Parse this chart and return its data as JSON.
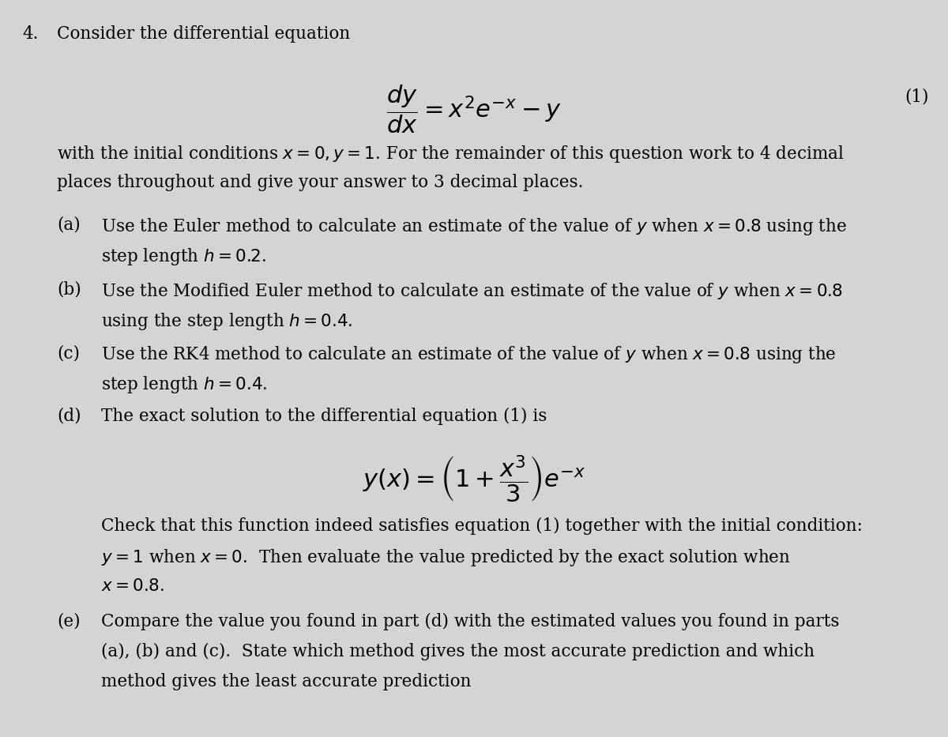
{
  "background_color": "#d4d4d4",
  "text_color": "#000000",
  "figsize": [
    12.0,
    9.33
  ],
  "dpi": 100,
  "fs_main": 15.5,
  "fs_eq": 22,
  "question_number": "4.",
  "title_text": "Consider the differential equation",
  "ode": "$\\dfrac{dy}{dx} = x^2e^{-x} - y$",
  "eq_number": "(1)",
  "ic_line1": "with the initial conditions $x=0, y=1$. For the remainder of this question work to 4 decimal",
  "ic_line2": "places throughout and give your answer to 3 decimal places.",
  "a_label": "(a)",
  "a_line1": "Use the Euler method to calculate an estimate of the value of $y$ when $x=0.8$ using the",
  "a_line2": "step length $h=0.2$.",
  "b_label": "(b)",
  "b_line1": "Use the Modified Euler method to calculate an estimate of the value of $y$ when $x=0.8$",
  "b_line2": "using the step length $h=0.4$.",
  "c_label": "(c)",
  "c_line1": "Use the RK4 method to calculate an estimate of the value of $y$ when $x=0.8$ using the",
  "c_line2": "step length $h=0.4$.",
  "d_label": "(d)",
  "d_line1": "The exact solution to the differential equation (1) is",
  "exact_sol": "$y(x) = \\left(1 + \\dfrac{x^3}{3}\\right)e^{-x}$",
  "d_line2": "Check that this function indeed satisfies equation (1) together with the initial condition:",
  "d_line3": "$y=1$ when $x=0$.  Then evaluate the value predicted by the exact solution when",
  "d_line4": "$x=0.8$.",
  "e_label": "(e)",
  "e_line1": "Compare the value you found in part (d) with the estimated values you found in parts",
  "e_line2": "(a), (b) and (c).  State which method gives the most accurate prediction and which",
  "e_line3": "method gives the least accurate prediction"
}
